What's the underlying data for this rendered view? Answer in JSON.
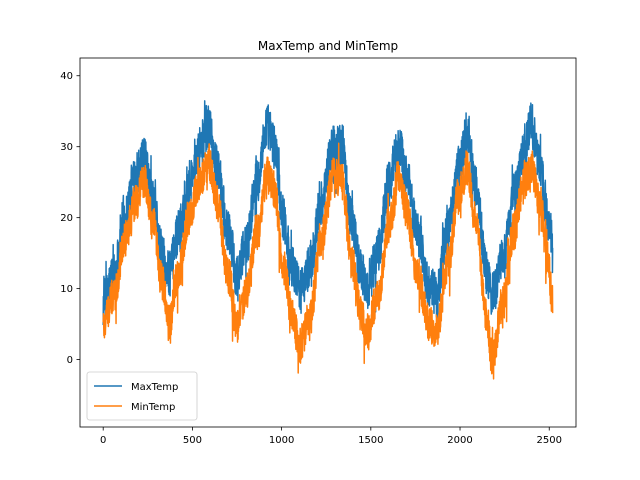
{
  "chart_data": {
    "type": "line",
    "title": "MaxTemp and MinTemp",
    "xlabel": "",
    "ylabel": "",
    "xlim": [
      -130,
      2650
    ],
    "ylim": [
      -9.5,
      42.5
    ],
    "xticks": [
      0,
      500,
      1000,
      1500,
      2000,
      2500
    ],
    "yticks": [
      0,
      10,
      20,
      30,
      40
    ],
    "grid": false,
    "legend": "lower-left",
    "n_points": 2520,
    "series": [
      {
        "name": "MaxTemp",
        "color": "#1f77b4",
        "anchors": [
          [
            0,
            8
          ],
          [
            60,
            12
          ],
          [
            120,
            20
          ],
          [
            180,
            26
          ],
          [
            230,
            28
          ],
          [
            280,
            22
          ],
          [
            330,
            15
          ],
          [
            370,
            12
          ],
          [
            420,
            18
          ],
          [
            480,
            25
          ],
          [
            540,
            30
          ],
          [
            590,
            33
          ],
          [
            640,
            27
          ],
          [
            700,
            18
          ],
          [
            750,
            12
          ],
          [
            800,
            16
          ],
          [
            860,
            25
          ],
          [
            920,
            33
          ],
          [
            960,
            30
          ],
          [
            1010,
            20
          ],
          [
            1060,
            13
          ],
          [
            1100,
            10
          ],
          [
            1160,
            13
          ],
          [
            1220,
            22
          ],
          [
            1290,
            30
          ],
          [
            1340,
            30
          ],
          [
            1390,
            20
          ],
          [
            1450,
            12
          ],
          [
            1480,
            10
          ],
          [
            1540,
            15
          ],
          [
            1600,
            25
          ],
          [
            1660,
            30
          ],
          [
            1700,
            26
          ],
          [
            1760,
            18
          ],
          [
            1830,
            10
          ],
          [
            1870,
            9
          ],
          [
            1930,
            18
          ],
          [
            1990,
            27
          ],
          [
            2040,
            32
          ],
          [
            2090,
            24
          ],
          [
            2150,
            12
          ],
          [
            2180,
            9
          ],
          [
            2240,
            14
          ],
          [
            2300,
            23
          ],
          [
            2360,
            30
          ],
          [
            2400,
            33
          ],
          [
            2450,
            27
          ],
          [
            2490,
            20
          ],
          [
            2520,
            16
          ]
        ]
      },
      {
        "name": "MinTemp",
        "color": "#ff7f0e",
        "anchors": [
          [
            0,
            5
          ],
          [
            60,
            9
          ],
          [
            120,
            17
          ],
          [
            180,
            22
          ],
          [
            230,
            25
          ],
          [
            280,
            19
          ],
          [
            330,
            11
          ],
          [
            370,
            5
          ],
          [
            420,
            12
          ],
          [
            480,
            20
          ],
          [
            540,
            25
          ],
          [
            590,
            28
          ],
          [
            640,
            22
          ],
          [
            700,
            12
          ],
          [
            750,
            5
          ],
          [
            800,
            9
          ],
          [
            860,
            18
          ],
          [
            920,
            26
          ],
          [
            960,
            24
          ],
          [
            1010,
            13
          ],
          [
            1060,
            6
          ],
          [
            1100,
            2
          ],
          [
            1160,
            6
          ],
          [
            1220,
            17
          ],
          [
            1290,
            26
          ],
          [
            1340,
            25
          ],
          [
            1390,
            14
          ],
          [
            1450,
            6
          ],
          [
            1480,
            4
          ],
          [
            1540,
            9
          ],
          [
            1600,
            19
          ],
          [
            1660,
            26
          ],
          [
            1700,
            21
          ],
          [
            1760,
            12
          ],
          [
            1830,
            5
          ],
          [
            1870,
            4
          ],
          [
            1930,
            13
          ],
          [
            1990,
            23
          ],
          [
            2040,
            27
          ],
          [
            2090,
            19
          ],
          [
            2150,
            6
          ],
          [
            2180,
            0
          ],
          [
            2240,
            8
          ],
          [
            2300,
            18
          ],
          [
            2360,
            25
          ],
          [
            2400,
            27
          ],
          [
            2450,
            22
          ],
          [
            2490,
            14
          ],
          [
            2520,
            8
          ]
        ]
      }
    ]
  }
}
